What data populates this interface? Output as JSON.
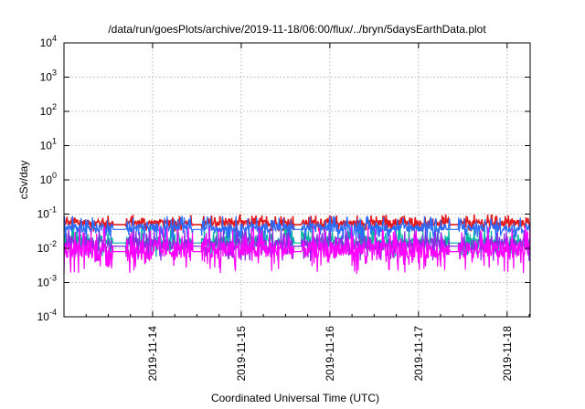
{
  "chart_data": {
    "type": "line",
    "title": "/data/run/goesPlots/archive/2019-11-18/06:00/flux/../bryn/5daysEarthData.plot",
    "xlabel": "Coordinated Universal Time (UTC)",
    "ylabel": "cSv/day",
    "yscale": "log",
    "ylim_exponents": [
      -4,
      4
    ],
    "y_tick_base": "10",
    "y_tick_exponents": [
      "-4",
      "-3",
      "-2",
      "-1",
      "0",
      "1",
      "2",
      "3",
      "4"
    ],
    "x_range_days": [
      "2019-11-13",
      "2019-11-18"
    ],
    "x_ticks": [
      "2019-11-14",
      "2019-11-15",
      "2019-11-16",
      "2019-11-17",
      "2019-11-18"
    ],
    "grid": true,
    "series_colors": [
      "#e41a1c",
      "#00a0a0",
      "#8a2be2",
      "#2060ff",
      "#ff00ff"
    ],
    "series": [
      {
        "color": "#e41a1c",
        "base": 0.055,
        "spread": 0.25
      },
      {
        "color": "#00b4a0",
        "base": 0.016,
        "spread": 0.45
      },
      {
        "color": "#8a2be2",
        "base": 0.013,
        "spread": 0.5
      },
      {
        "color": "#2a6cff",
        "base": 0.04,
        "spread": 0.35
      },
      {
        "color": "#ff00ff",
        "base": 0.009,
        "spread": 0.7
      }
    ]
  }
}
